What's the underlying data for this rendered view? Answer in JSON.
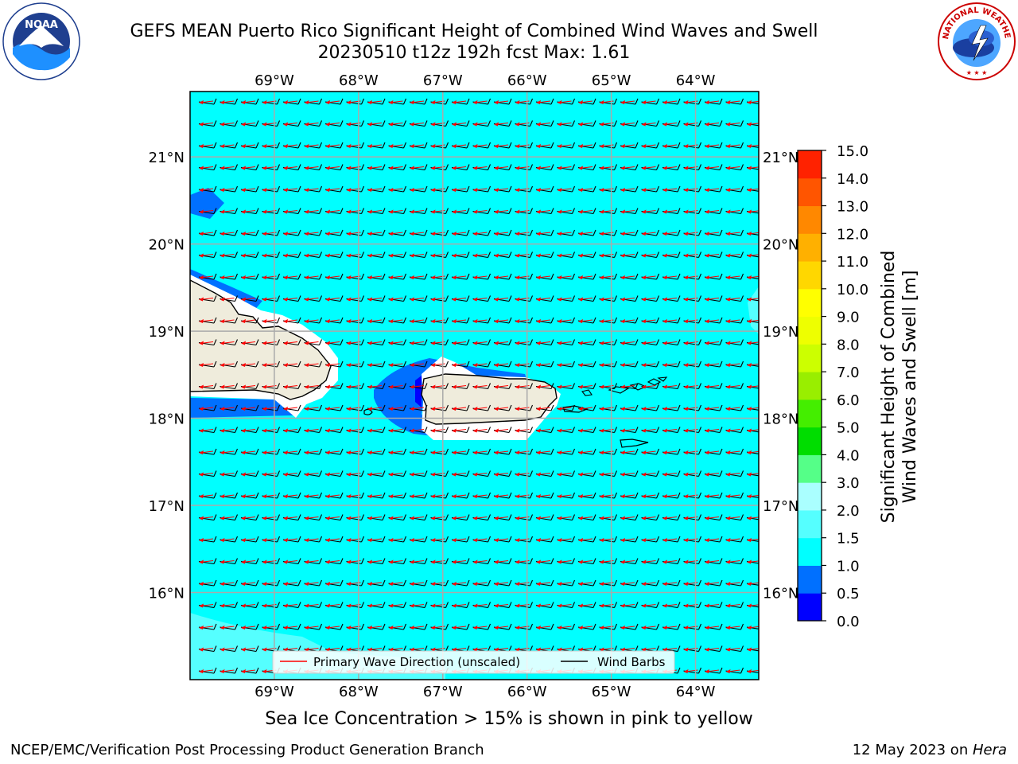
{
  "title_line1": "GEFS MEAN Puerto Rico Significant Height of Combined Wind Waves and Swell",
  "title_line2": "20230510 t12z 192h fcst   Max: 1.61",
  "caption": "Sea Ice Concentration > 15% is shown in pink to yellow",
  "footer_left": "NCEP/EMC/Verification Post Processing Product Generation Branch",
  "footer_right_date": "12 May 2023 on ",
  "footer_right_host": "Hera",
  "logos": {
    "left": "NOAA",
    "right": "NATIONAL WEATHER SERVICE"
  },
  "map": {
    "lon_ticks": [
      "69°W",
      "68°W",
      "67°W",
      "66°W",
      "65°W",
      "64°W"
    ],
    "lat_ticks": [
      "21°N",
      "20°N",
      "19°N",
      "18°N",
      "17°N",
      "16°N"
    ],
    "lon_values": [
      -69,
      -68,
      -67,
      -66,
      -65,
      -64
    ],
    "lat_values": [
      21,
      20,
      19,
      18,
      17,
      16
    ],
    "extent": {
      "lon_min": -70.0,
      "lon_max": -63.25,
      "lat_min": 15.0,
      "lat_max": 21.75
    },
    "legend": {
      "wave_label": "Primary Wave Direction (unscaled)",
      "barb_label": "Wind Barbs",
      "wave_color": "#ff0000",
      "barb_color": "#000000"
    },
    "ocean_color": "#00ffff",
    "land_color": "#efecdc"
  },
  "colorbar": {
    "label_line1": "Significant Height of Combined",
    "label_line2": "Wind Waves and Swell [m]",
    "ticks": [
      "15.0",
      "14.0",
      "13.0",
      "12.0",
      "11.0",
      "10.0",
      "9.0",
      "8.0",
      "7.0",
      "6.0",
      "5.0",
      "4.0",
      "3.0",
      "2.0",
      "1.5",
      "1.0",
      "0.5",
      "0.0"
    ],
    "colors_bottom_to_top": [
      "#0000ff",
      "#0070ff",
      "#00ffff",
      "#55ffff",
      "#aaffff",
      "#55ff88",
      "#00dd00",
      "#44ee00",
      "#99ee00",
      "#ccff00",
      "#eeff00",
      "#ffff00",
      "#ffd700",
      "#ffb000",
      "#ff8800",
      "#ff5500",
      "#ff2200"
    ]
  }
}
